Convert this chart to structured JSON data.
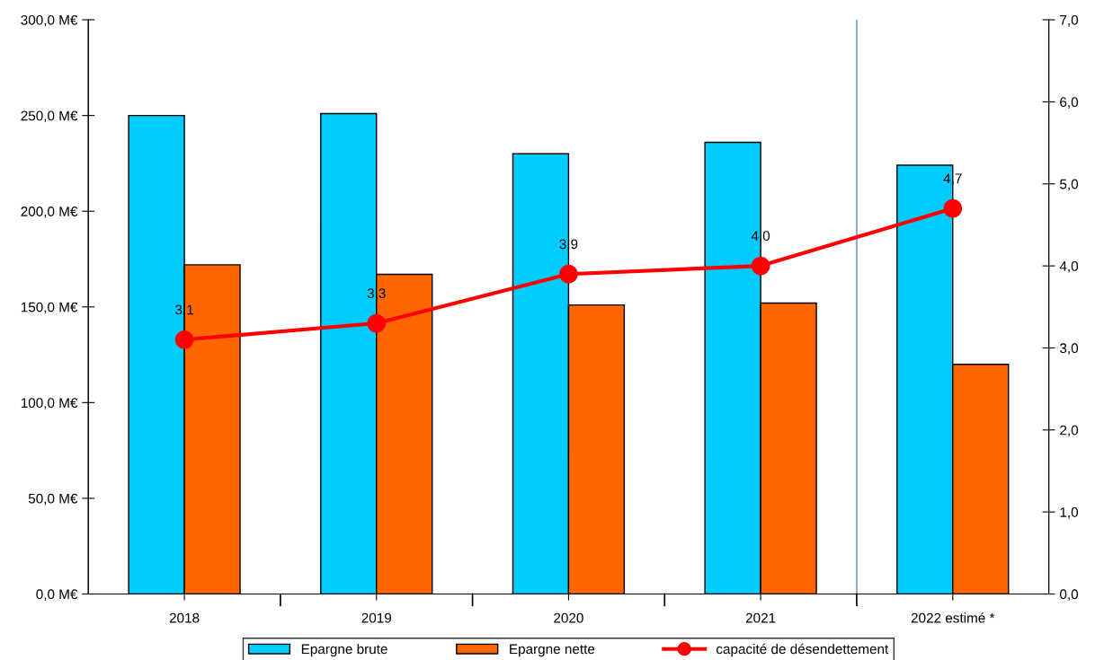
{
  "chart_data": {
    "type": "bar",
    "categories": [
      "2018",
      "2019",
      "2020",
      "2021",
      "2022 estimé *"
    ],
    "series": [
      {
        "name": "Epargne brute",
        "color": "#00ccff",
        "values": [
          250,
          251,
          230,
          236,
          224
        ]
      },
      {
        "name": "Epargne nette",
        "color": "#ff6600",
        "values": [
          172,
          167,
          151,
          152,
          120
        ]
      },
      {
        "name": "capacité de désendettement",
        "color": "#ff0000",
        "type": "line",
        "axis": "y2",
        "marker": "circle",
        "data_labels": true,
        "values": [
          3.1,
          3.3,
          3.9,
          4.0,
          4.7
        ],
        "value_labels": [
          "3,1",
          "3,3",
          "3,9",
          "4,0",
          "4,7"
        ]
      }
    ],
    "ylim": [
      0,
      300
    ],
    "yticks": [
      {
        "value": 0,
        "label": "0,0 M€"
      },
      {
        "value": 50,
        "label": "50,0 M€"
      },
      {
        "value": 100,
        "label": "100,0 M€"
      },
      {
        "value": 150,
        "label": "150,0 M€"
      },
      {
        "value": 200,
        "label": "200,0 M€"
      },
      {
        "value": 250,
        "label": "250,0 M€"
      },
      {
        "value": 300,
        "label": "300,0 M€"
      }
    ],
    "y2lim": [
      0,
      7
    ],
    "y2ticks": [
      {
        "value": 0,
        "label": "0,0"
      },
      {
        "value": 1,
        "label": "1,0"
      },
      {
        "value": 2,
        "label": "2,0"
      },
      {
        "value": 3,
        "label": "3,0"
      },
      {
        "value": 4,
        "label": "4,0"
      },
      {
        "value": 5,
        "label": "5,0"
      },
      {
        "value": 6,
        "label": "6,0"
      },
      {
        "value": 7,
        "label": "7,0"
      }
    ],
    "ref_lines": [
      {
        "axis": "x",
        "value": "2022 estimé *",
        "color": "#8ea9db"
      }
    ],
    "grid": false,
    "legend": "bottom"
  }
}
